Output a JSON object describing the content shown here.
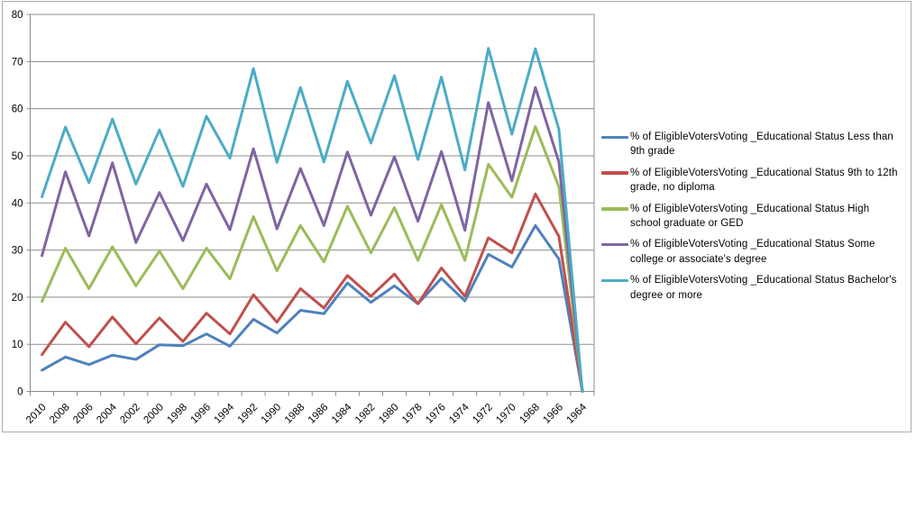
{
  "chart_data": {
    "type": "line",
    "title": "",
    "xlabel": "",
    "ylabel": "",
    "categories": [
      "2010",
      "2008",
      "2006",
      "2004",
      "2002",
      "2000",
      "1998",
      "1996",
      "1994",
      "1992",
      "1990",
      "1988",
      "1986",
      "1984",
      "1982",
      "1980",
      "1978",
      "1976",
      "1974",
      "1972",
      "1970",
      "1968",
      "1966",
      "1964"
    ],
    "series": [
      {
        "name": "% of EligibleVotersVoting _Educational Status Less than 9th grade",
        "short_name": "less-than-9th-grade",
        "color": "#4F81BD",
        "values": [
          4.5,
          7.3,
          5.7,
          7.7,
          6.8,
          9.9,
          9.7,
          12.2,
          9.6,
          15.3,
          12.4,
          17.2,
          16.5,
          23.0,
          18.9,
          22.4,
          18.6,
          24.0,
          19.2,
          29.1,
          26.4,
          35.2,
          28.1,
          0
        ]
      },
      {
        "name": "% of EligibleVotersVoting _Educational Status 9th to 12th grade, no diploma",
        "short_name": "9th-to-12th-grade-no-diploma",
        "color": "#C0504D",
        "values": [
          7.8,
          14.7,
          9.5,
          15.8,
          10.1,
          15.6,
          10.6,
          16.6,
          12.2,
          20.5,
          14.7,
          21.8,
          17.7,
          24.6,
          20.2,
          24.9,
          18.6,
          26.2,
          20.2,
          32.6,
          29.4,
          41.9,
          32.9,
          0
        ]
      },
      {
        "name": "% of EligibleVotersVoting _Educational Status High school graduate or GED",
        "short_name": "high-school-graduate-or-ged",
        "color": "#9BBB59",
        "values": [
          19.1,
          30.4,
          21.8,
          30.7,
          22.4,
          29.8,
          21.8,
          30.4,
          23.9,
          37.1,
          25.6,
          35.2,
          27.5,
          39.3,
          29.4,
          39.0,
          27.8,
          39.6,
          27.8,
          48.2,
          41.2,
          56.2,
          43.4,
          0
        ]
      },
      {
        "name": "% of EligibleVotersVoting _Educational Status Some college or associate's degree",
        "short_name": "some-college-or-associates-degree",
        "color": "#8064A2",
        "values": [
          28.8,
          46.6,
          33.0,
          48.5,
          31.6,
          42.2,
          32.0,
          44.0,
          34.3,
          51.5,
          34.5,
          47.3,
          35.2,
          50.8,
          37.4,
          49.8,
          36.1,
          50.9,
          34.2,
          61.3,
          44.7,
          64.5,
          48.7,
          0
        ]
      },
      {
        "name": "% of EligibleVotersVoting _Educational Status Bachelor's degree or more",
        "short_name": "bachelors-degree-or-more",
        "color": "#4BACC6",
        "values": [
          41.3,
          56.1,
          44.3,
          57.8,
          44.0,
          55.5,
          43.5,
          58.4,
          49.5,
          68.5,
          48.6,
          64.5,
          48.7,
          65.8,
          52.7,
          67.0,
          49.2,
          66.7,
          47.0,
          72.8,
          54.6,
          72.7,
          55.6,
          0
        ]
      }
    ],
    "ylim": [
      0,
      80
    ],
    "yticks": [
      0,
      10,
      20,
      30,
      40,
      50,
      60,
      70,
      80
    ],
    "grid": true,
    "legend_position": "right",
    "x_label_rotation_deg": -45
  },
  "colors": {
    "background": "#FFFFFF",
    "frame_border": "#ABABAB",
    "gridline": "#8C8C8C",
    "axis": "#8C8C8C",
    "tick_label": "#000000"
  }
}
